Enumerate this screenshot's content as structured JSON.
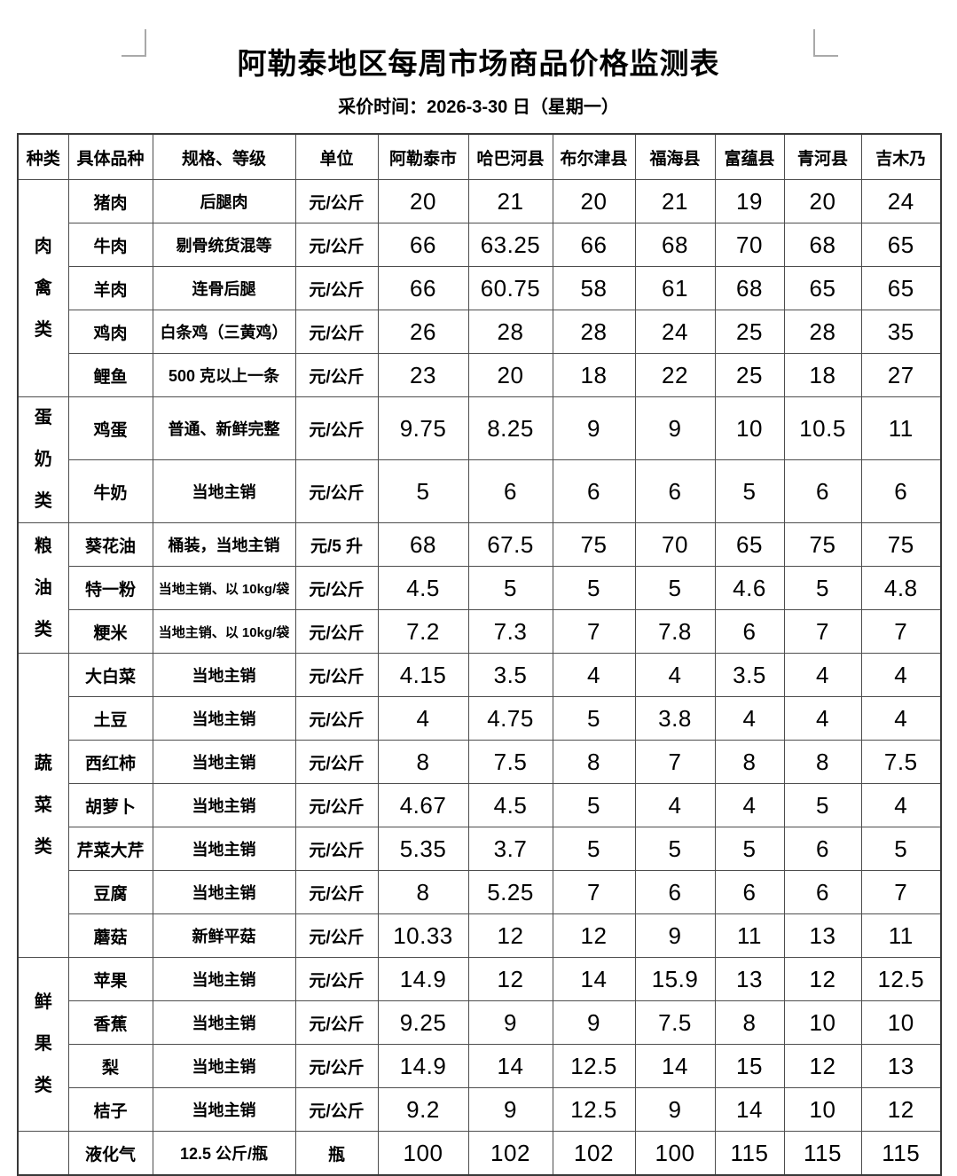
{
  "page": {
    "title": "阿勒泰地区每周市场商品价格监测表",
    "subtitle": "采价时间：2026-3-30 日（星期一）"
  },
  "table": {
    "headers": [
      "种类",
      "具体品种",
      "规格、等级",
      "单位",
      "阿勒泰市",
      "哈巴河县",
      "布尔津县",
      "福海县",
      "富蕴县",
      "青河县",
      "吉木乃"
    ],
    "groups": [
      {
        "category": "肉禽类",
        "rows": [
          {
            "item": "猪肉",
            "spec": "后腿肉",
            "unit": "元/公斤",
            "prices": [
              "20",
              "21",
              "20",
              "21",
              "19",
              "20",
              "24"
            ]
          },
          {
            "item": "牛肉",
            "spec": "剔骨统货混等",
            "unit": "元/公斤",
            "prices": [
              "66",
              "63.25",
              "66",
              "68",
              "70",
              "68",
              "65"
            ]
          },
          {
            "item": "羊肉",
            "spec": "连骨后腿",
            "unit": "元/公斤",
            "prices": [
              "66",
              "60.75",
              "58",
              "61",
              "68",
              "65",
              "65"
            ]
          },
          {
            "item": "鸡肉",
            "spec": "白条鸡（三黄鸡）",
            "unit": "元/公斤",
            "prices": [
              "26",
              "28",
              "28",
              "24",
              "25",
              "28",
              "35"
            ]
          },
          {
            "item": "鲤鱼",
            "spec": "500 克以上一条",
            "unit": "元/公斤",
            "prices": [
              "23",
              "20",
              "18",
              "22",
              "25",
              "18",
              "27"
            ]
          }
        ]
      },
      {
        "category": "蛋奶类",
        "rows": [
          {
            "item": "鸡蛋",
            "spec": "普通、新鲜完整",
            "unit": "元/公斤",
            "prices": [
              "9.75",
              "8.25",
              "9",
              "9",
              "10",
              "10.5",
              "11"
            ]
          },
          {
            "item": "牛奶",
            "spec": "当地主销",
            "unit": "元/公斤",
            "prices": [
              "5",
              "6",
              "6",
              "6",
              "5",
              "6",
              "6"
            ]
          }
        ]
      },
      {
        "category": "粮油类",
        "rows": [
          {
            "item": "葵花油",
            "spec": "桶装，当地主销",
            "unit": "元/5 升",
            "prices": [
              "68",
              "67.5",
              "75",
              "70",
              "65",
              "75",
              "75"
            ]
          },
          {
            "item": "特一粉",
            "spec": "当地主销、以 10kg/袋",
            "unit": "元/公斤",
            "prices": [
              "4.5",
              "5",
              "5",
              "5",
              "4.6",
              "5",
              "4.8"
            ]
          },
          {
            "item": "粳米",
            "spec": "当地主销、以 10kg/袋",
            "unit": "元/公斤",
            "prices": [
              "7.2",
              "7.3",
              "7",
              "7.8",
              "6",
              "7",
              "7"
            ]
          }
        ]
      },
      {
        "category": "蔬菜类",
        "rows": [
          {
            "item": "大白菜",
            "spec": "当地主销",
            "unit": "元/公斤",
            "prices": [
              "4.15",
              "3.5",
              "4",
              "4",
              "3.5",
              "4",
              "4"
            ]
          },
          {
            "item": "土豆",
            "spec": "当地主销",
            "unit": "元/公斤",
            "prices": [
              "4",
              "4.75",
              "5",
              "3.8",
              "4",
              "4",
              "4"
            ]
          },
          {
            "item": "西红柿",
            "spec": "当地主销",
            "unit": "元/公斤",
            "prices": [
              "8",
              "7.5",
              "8",
              "7",
              "8",
              "8",
              "7.5"
            ]
          },
          {
            "item": "胡萝卜",
            "spec": "当地主销",
            "unit": "元/公斤",
            "prices": [
              "4.67",
              "4.5",
              "5",
              "4",
              "4",
              "5",
              "4"
            ]
          },
          {
            "item": "芹菜大芹",
            "spec": "当地主销",
            "unit": "元/公斤",
            "prices": [
              "5.35",
              "3.7",
              "5",
              "5",
              "5",
              "6",
              "5"
            ]
          },
          {
            "item": "豆腐",
            "spec": "当地主销",
            "unit": "元/公斤",
            "prices": [
              "8",
              "5.25",
              "7",
              "6",
              "6",
              "6",
              "7"
            ]
          },
          {
            "item": "蘑菇",
            "spec": "新鲜平菇",
            "unit": "元/公斤",
            "prices": [
              "10.33",
              "12",
              "12",
              "9",
              "11",
              "13",
              "11"
            ]
          }
        ]
      },
      {
        "category": "鲜果类",
        "rows": [
          {
            "item": "苹果",
            "spec": "当地主销",
            "unit": "元/公斤",
            "prices": [
              "14.9",
              "12",
              "14",
              "15.9",
              "13",
              "12",
              "12.5"
            ]
          },
          {
            "item": "香蕉",
            "spec": "当地主销",
            "unit": "元/公斤",
            "prices": [
              "9.25",
              "9",
              "9",
              "7.5",
              "8",
              "10",
              "10"
            ]
          },
          {
            "item": "梨",
            "spec": "当地主销",
            "unit": "元/公斤",
            "prices": [
              "14.9",
              "14",
              "12.5",
              "14",
              "15",
              "12",
              "13"
            ]
          },
          {
            "item": "桔子",
            "spec": "当地主销",
            "unit": "元/公斤",
            "prices": [
              "9.2",
              "9",
              "12.5",
              "9",
              "14",
              "10",
              "12"
            ]
          }
        ]
      },
      {
        "category": "",
        "rows": [
          {
            "item": "液化气",
            "spec": "12.5 公斤/瓶",
            "unit": "瓶",
            "prices": [
              "100",
              "102",
              "102",
              "100",
              "115",
              "115",
              "115"
            ]
          }
        ]
      }
    ]
  },
  "colors": {
    "border": "#4d4d4d",
    "text": "#000000",
    "background": "#ffffff",
    "margin_mark": "#a9a9a9"
  }
}
